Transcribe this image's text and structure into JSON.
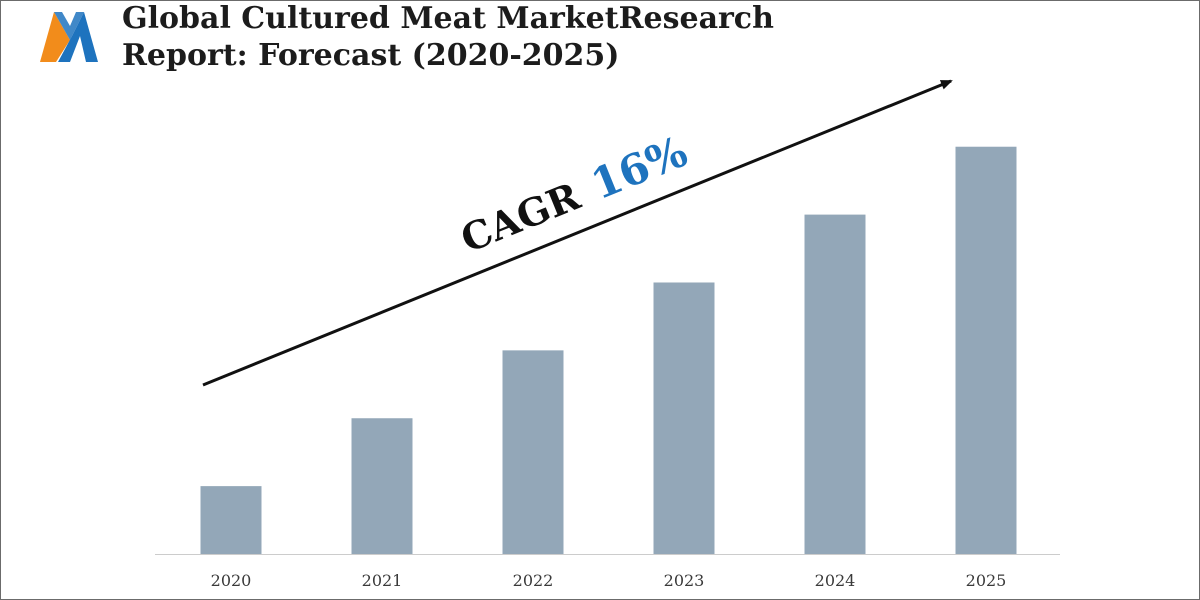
{
  "title": {
    "line1": "Global Cultured Meat MarketResearch",
    "line2": "Report: Forecast (2020-2025)"
  },
  "logo": {
    "icon": "m-letter-logo",
    "colors": [
      "#f28c1b",
      "#1e73be"
    ]
  },
  "annotation": {
    "prefix": "CAGR",
    "value": "16%",
    "value_color": "#1e73be",
    "arrow": "up-right trend arrow"
  },
  "chart_data": {
    "type": "bar",
    "categories": [
      "2020",
      "2021",
      "2022",
      "2023",
      "2024",
      "2025"
    ],
    "values": [
      1,
      2,
      3,
      4,
      5,
      6
    ],
    "ylim": [
      0,
      6.6
    ],
    "grid": false,
    "colors": {
      "bar": "#93a7b8",
      "axis": "#cccccc"
    }
  }
}
